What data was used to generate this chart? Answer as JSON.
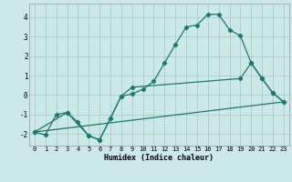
{
  "title": "",
  "xlabel": "Humidex (Indice chaleur)",
  "bg_color": "#cce8e8",
  "grid_color": "#aacccc",
  "line_color": "#1a7a6e",
  "xlim": [
    -0.5,
    23.5
  ],
  "ylim": [
    -2.6,
    4.7
  ],
  "xticks": [
    0,
    1,
    2,
    3,
    4,
    5,
    6,
    7,
    8,
    9,
    10,
    11,
    12,
    13,
    14,
    15,
    16,
    17,
    18,
    19,
    20,
    21,
    22,
    23
  ],
  "yticks": [
    -2,
    -1,
    0,
    1,
    2,
    3,
    4
  ],
  "line1_x": [
    0,
    1,
    2,
    3,
    4,
    5,
    6,
    7,
    8,
    9,
    10,
    11,
    12,
    13,
    14,
    15,
    16,
    17,
    18,
    19,
    20,
    21,
    22,
    23
  ],
  "line1_y": [
    -1.9,
    -2.05,
    -1.0,
    -0.9,
    -1.4,
    -2.1,
    -2.3,
    -1.2,
    -0.05,
    0.05,
    0.3,
    0.7,
    1.65,
    2.6,
    3.5,
    3.6,
    4.15,
    4.15,
    3.35,
    3.05,
    1.65,
    0.85,
    0.1,
    -0.35
  ],
  "line2_x": [
    0,
    3,
    5,
    6,
    7,
    8,
    9,
    19,
    20,
    21,
    22,
    23
  ],
  "line2_y": [
    -1.9,
    -0.9,
    -2.1,
    -2.3,
    -1.2,
    -0.05,
    0.4,
    0.85,
    1.65,
    0.85,
    0.1,
    -0.35
  ],
  "line3_x": [
    0,
    23
  ],
  "line3_y": [
    -1.9,
    -0.35
  ]
}
